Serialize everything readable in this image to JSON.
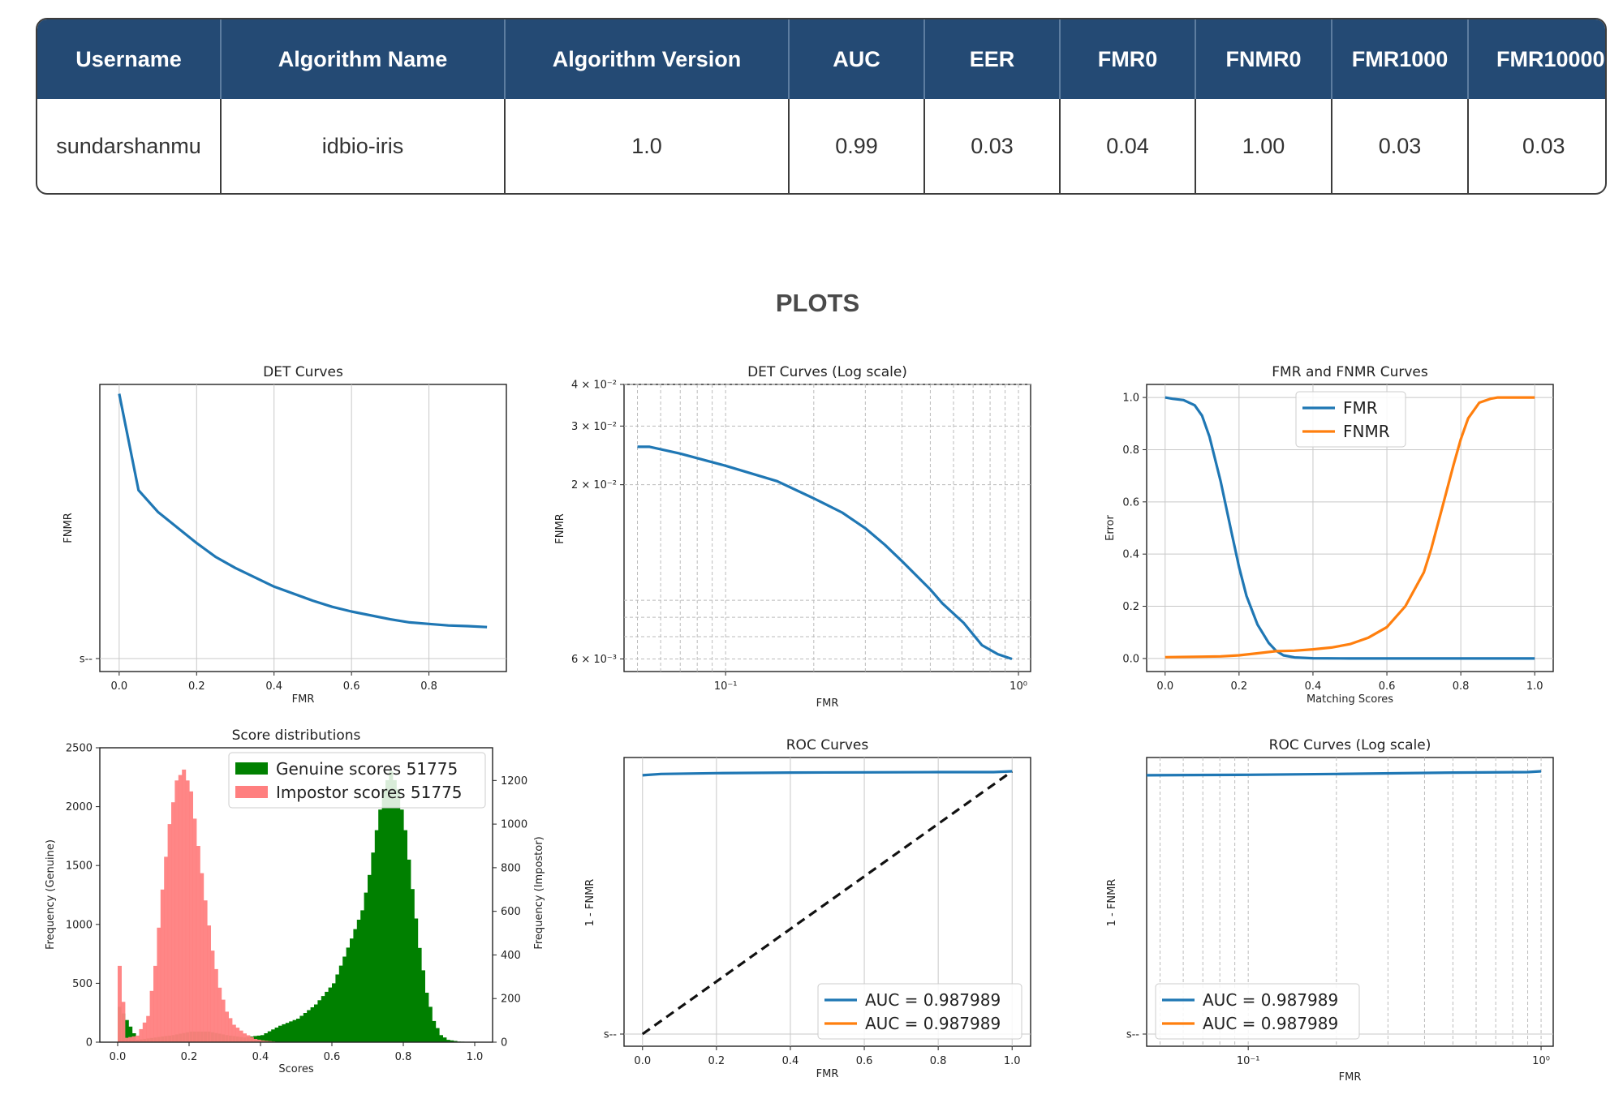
{
  "table": {
    "headers": [
      "Username",
      "Algorithm Name",
      "Algorithm Version",
      "AUC",
      "EER",
      "FMR0",
      "FNMR0",
      "FMR1000",
      "FMR10000"
    ],
    "rows": [
      [
        "sundarshanmu",
        "idbio-iris",
        "1.0",
        "0.99",
        "0.03",
        "0.04",
        "1.00",
        "0.03",
        "0.03"
      ]
    ]
  },
  "section_title": "PLOTS",
  "colors": {
    "header_bg": "#244a74",
    "blue": "#1f77b4",
    "orange": "#ff7f0e",
    "green": "#008000",
    "salmon": "#ff7f7f"
  },
  "chart_data": [
    {
      "type": "line",
      "title": "DET Curves",
      "xlabel": "FMR",
      "ylabel": "FNMR",
      "xlim": [
        -0.05,
        1.0
      ],
      "xticks": [
        "0.0",
        "0.2",
        "0.4",
        "0.6",
        "0.8"
      ],
      "yticks": [
        "s--"
      ],
      "grid": true,
      "series": [
        {
          "x": [
            0.0,
            0.05,
            0.1,
            0.2,
            0.25,
            0.3,
            0.4,
            0.5,
            0.55,
            0.6,
            0.7,
            0.75,
            0.8,
            0.85,
            0.9,
            0.95
          ],
          "y": [
            0.97,
            0.66,
            0.59,
            0.49,
            0.445,
            0.41,
            0.35,
            0.305,
            0.285,
            0.27,
            0.245,
            0.235,
            0.23,
            0.225,
            0.223,
            0.22
          ]
        }
      ]
    },
    {
      "type": "line",
      "title": "DET Curves (Log scale)",
      "xlabel": "FMR",
      "ylabel": "FNMR",
      "xscale": "log",
      "yscale": "log",
      "xlim": [
        0.045,
        1.1
      ],
      "ylim": [
        0.0055,
        0.04
      ],
      "xticks": [
        "10⁻¹",
        "10⁰"
      ],
      "yticks": [
        "4 × 10⁻²",
        "3 × 10⁻²",
        "2 × 10⁻²",
        "6 × 10⁻³"
      ],
      "grid": true,
      "series": [
        {
          "x": [
            0.05,
            0.055,
            0.07,
            0.1,
            0.15,
            0.2,
            0.25,
            0.3,
            0.35,
            0.4,
            0.5,
            0.55,
            0.65,
            0.75,
            0.85,
            0.95
          ],
          "y": [
            0.026,
            0.026,
            0.0248,
            0.0228,
            0.0205,
            0.0182,
            0.0165,
            0.0148,
            0.0132,
            0.0118,
            0.0097,
            0.0088,
            0.0077,
            0.0066,
            0.0062,
            0.006
          ]
        }
      ]
    },
    {
      "type": "line",
      "title": "FMR and FNMR Curves",
      "xlabel": "Matching Scores",
      "ylabel": "Error",
      "xlim": [
        -0.05,
        1.05
      ],
      "ylim": [
        -0.05,
        1.05
      ],
      "xticks": [
        "0.0",
        "0.2",
        "0.4",
        "0.6",
        "0.8",
        "1.0"
      ],
      "yticks": [
        "0.0",
        "0.2",
        "0.4",
        "0.6",
        "0.8",
        "1.0"
      ],
      "grid": true,
      "legend": "upper-center",
      "series": [
        {
          "name": "FMR",
          "x": [
            0.0,
            0.02,
            0.05,
            0.08,
            0.1,
            0.12,
            0.15,
            0.18,
            0.2,
            0.22,
            0.25,
            0.28,
            0.3,
            0.32,
            0.35,
            0.4,
            0.5,
            0.6,
            0.7,
            0.8,
            0.9,
            1.0
          ],
          "y": [
            1.0,
            0.995,
            0.99,
            0.97,
            0.93,
            0.85,
            0.68,
            0.48,
            0.35,
            0.24,
            0.13,
            0.06,
            0.03,
            0.012,
            0.004,
            0.001,
            0.0,
            0.0,
            0.0,
            0.0,
            0.0,
            0.0
          ]
        },
        {
          "name": "FNMR",
          "x": [
            0.0,
            0.1,
            0.15,
            0.2,
            0.25,
            0.3,
            0.35,
            0.4,
            0.45,
            0.5,
            0.55,
            0.6,
            0.65,
            0.7,
            0.72,
            0.75,
            0.78,
            0.8,
            0.82,
            0.85,
            0.88,
            0.9,
            0.95,
            1.0
          ],
          "y": [
            0.005,
            0.007,
            0.008,
            0.012,
            0.02,
            0.028,
            0.03,
            0.035,
            0.042,
            0.055,
            0.08,
            0.12,
            0.2,
            0.33,
            0.42,
            0.58,
            0.74,
            0.84,
            0.92,
            0.98,
            0.995,
            1.0,
            1.0,
            1.0
          ]
        }
      ]
    },
    {
      "type": "bar",
      "title": "Score distributions",
      "xlabel": "Scores",
      "ylabel": "Frequency (Genuine)",
      "ylabel_right": "Frequency (Impostor)",
      "xlim": [
        -0.05,
        1.05
      ],
      "ylim": [
        0,
        2500
      ],
      "ylim_right": [
        0,
        1350
      ],
      "xticks": [
        "0.0",
        "0.2",
        "0.4",
        "0.6",
        "0.8",
        "1.0"
      ],
      "yticks": [
        "0",
        "500",
        "1000",
        "1500",
        "2000",
        "2500"
      ],
      "yticks_right": [
        "0",
        "200",
        "400",
        "600",
        "800",
        "1000",
        "1200"
      ],
      "legend": "upper-right",
      "series": [
        {
          "name": "Genuine scores 51775",
          "axis": "left",
          "x": [
            0.0,
            0.05,
            0.1,
            0.15,
            0.2,
            0.25,
            0.3,
            0.35,
            0.4,
            0.45,
            0.5,
            0.55,
            0.6,
            0.62,
            0.65,
            0.68,
            0.7,
            0.72,
            0.74,
            0.76,
            0.78,
            0.8,
            0.82,
            0.84,
            0.86,
            0.88,
            0.9,
            0.92,
            0.95,
            1.0
          ],
          "y": [
            300,
            20,
            40,
            60,
            90,
            90,
            60,
            40,
            60,
            140,
            200,
            320,
            500,
            650,
            880,
            1120,
            1420,
            1800,
            2150,
            2300,
            2150,
            1800,
            1300,
            800,
            420,
            180,
            60,
            20,
            5,
            0
          ]
        },
        {
          "name": "Impostor scores 51775",
          "axis": "right",
          "x": [
            0.0,
            0.02,
            0.05,
            0.08,
            0.1,
            0.12,
            0.14,
            0.16,
            0.18,
            0.2,
            0.22,
            0.24,
            0.26,
            0.28,
            0.3,
            0.32,
            0.35,
            0.38,
            0.4,
            0.45
          ],
          "y": [
            350,
            20,
            30,
            120,
            350,
            700,
            1000,
            1200,
            1250,
            1150,
            900,
            650,
            420,
            250,
            140,
            80,
            40,
            15,
            8,
            0
          ]
        }
      ]
    },
    {
      "type": "line",
      "title": "ROC Curves",
      "xlabel": "FMR",
      "ylabel": "1 - FNMR",
      "xlim": [
        -0.05,
        1.05
      ],
      "xticks": [
        "0.0",
        "0.2",
        "0.4",
        "0.6",
        "0.8",
        "1.0"
      ],
      "yticks": [
        "s--"
      ],
      "grid": true,
      "legend": "lower-right",
      "series": [
        {
          "name": "AUC = 0.987989",
          "x": [
            0.0,
            0.05,
            0.2,
            0.4,
            0.6,
            0.8,
            0.95,
            1.0
          ],
          "y": [
            0.975,
            0.98,
            0.983,
            0.985,
            0.986,
            0.987,
            0.987,
            0.99
          ]
        },
        {
          "name": "AUC = 0.987989",
          "x": [],
          "y": []
        },
        {
          "x": [
            0.0,
            1.0
          ],
          "y": [
            0.0,
            0.99
          ],
          "style": "dashed"
        }
      ]
    },
    {
      "type": "line",
      "title": "ROC Curves (Log scale)",
      "xlabel": "FMR",
      "ylabel": "1 - FNMR",
      "xscale": "log",
      "xlim": [
        0.045,
        1.1
      ],
      "xticks": [
        "10⁻¹",
        "10⁰"
      ],
      "yticks": [
        "s--"
      ],
      "grid": true,
      "legend": "lower-left",
      "series": [
        {
          "name": "AUC = 0.987989",
          "x": [
            0.045,
            0.1,
            0.2,
            0.5,
            0.9,
            1.0
          ],
          "y": [
            0.975,
            0.977,
            0.98,
            0.985,
            0.987,
            0.99
          ]
        },
        {
          "name": "AUC = 0.987989",
          "x": [],
          "y": []
        }
      ]
    }
  ]
}
